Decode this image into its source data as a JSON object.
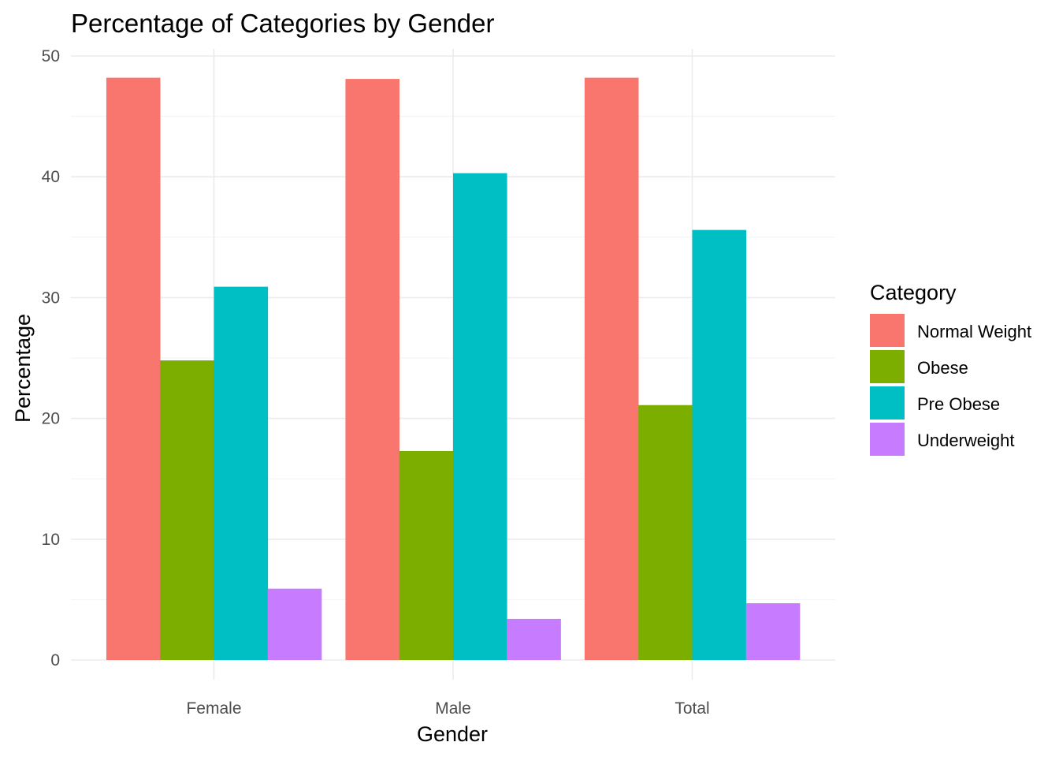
{
  "chart_data": {
    "type": "bar",
    "title": "Percentage of Categories by Gender",
    "xlabel": "Gender",
    "ylabel": "Percentage",
    "categories": [
      "Female",
      "Male",
      "Total"
    ],
    "series": [
      {
        "name": "Normal Weight",
        "color": "#F8766D",
        "values": [
          48.2,
          48.1,
          48.2
        ]
      },
      {
        "name": "Obese",
        "color": "#7CAE00",
        "values": [
          24.8,
          17.3,
          21.1
        ]
      },
      {
        "name": "Pre Obese",
        "color": "#00BFC4",
        "values": [
          30.9,
          40.3,
          35.6
        ]
      },
      {
        "name": "Underweight",
        "color": "#C77CFF",
        "values": [
          5.9,
          3.4,
          4.7
        ]
      }
    ],
    "ylim": [
      0,
      50
    ],
    "yticks": [
      0,
      10,
      20,
      30,
      40,
      50
    ],
    "legend_title": "Category",
    "legend_position": "right",
    "grid": true
  }
}
